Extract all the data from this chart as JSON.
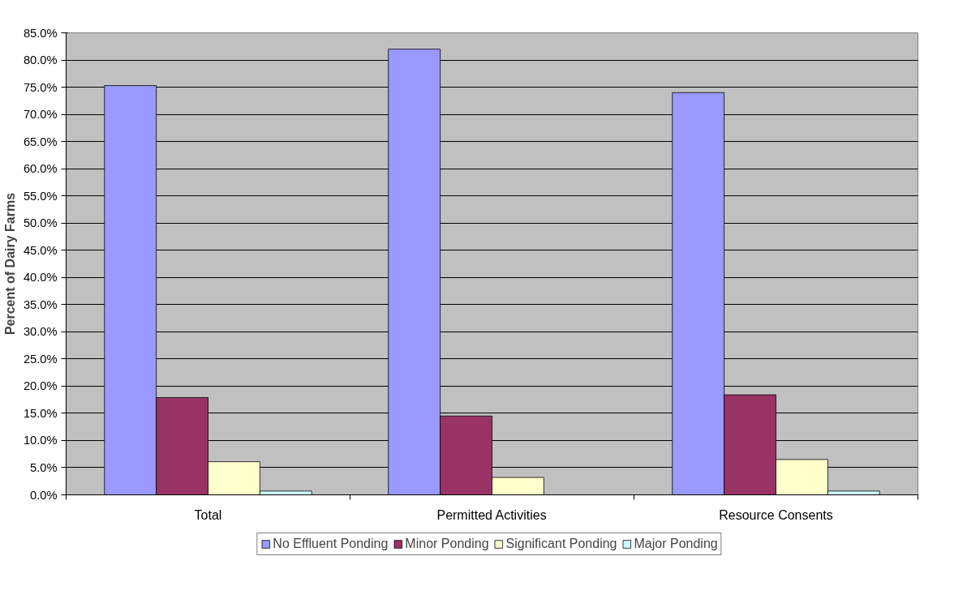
{
  "chart_data": {
    "type": "bar",
    "ylabel": "Percent of Dairy Farms",
    "categories": [
      "Total",
      "Permitted Activities",
      "Resource Consents"
    ],
    "series": [
      {
        "name": "No Effluent Ponding",
        "color": "#9999ff",
        "values": [
          75.3,
          82.0,
          74.0
        ]
      },
      {
        "name": "Minor Ponding",
        "color": "#993366",
        "values": [
          17.9,
          14.5,
          18.4
        ]
      },
      {
        "name": "Significant Ponding",
        "color": "#ffffcc",
        "values": [
          6.1,
          3.2,
          6.5
        ]
      },
      {
        "name": "Major Ponding",
        "color": "#ccffff",
        "values": [
          0.7,
          null,
          0.7
        ]
      }
    ],
    "ylim": [
      0,
      85
    ],
    "yticks": [
      {
        "value": 0,
        "label": "0.0%"
      },
      {
        "value": 5,
        "label": "5.0%"
      },
      {
        "value": 10,
        "label": "10.0%"
      },
      {
        "value": 15,
        "label": "15.0%"
      },
      {
        "value": 20,
        "label": "20.0%"
      },
      {
        "value": 25,
        "label": "25.0%"
      },
      {
        "value": 30,
        "label": "30.0%"
      },
      {
        "value": 35,
        "label": "35.0%"
      },
      {
        "value": 40,
        "label": "40.0%"
      },
      {
        "value": 45,
        "label": "45.0%"
      },
      {
        "value": 50,
        "label": "50.0%"
      },
      {
        "value": 55,
        "label": "55.0%"
      },
      {
        "value": 60,
        "label": "60.0%"
      },
      {
        "value": 65,
        "label": "65.0%"
      },
      {
        "value": 70,
        "label": "70.0%"
      },
      {
        "value": 75,
        "label": "75.0%"
      },
      {
        "value": 80,
        "label": "80.0%"
      },
      {
        "value": 85,
        "label": "85.0%"
      }
    ],
    "grid": "y",
    "legend": "bottom"
  }
}
